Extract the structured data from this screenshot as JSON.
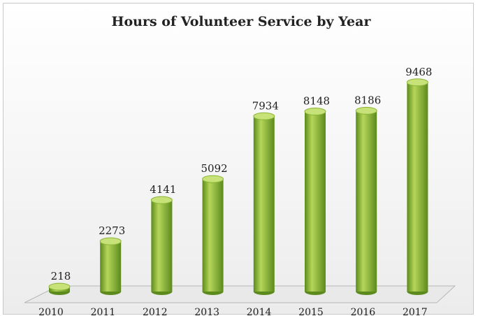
{
  "chart_data": {
    "type": "bar",
    "title": "Hours of Volunteer Service by Year",
    "xlabel": "",
    "ylabel": "",
    "categories": [
      "2010",
      "2011",
      "2012",
      "2013",
      "2014",
      "2015",
      "2016",
      "2017"
    ],
    "values": [
      218,
      2273,
      4141,
      5092,
      7934,
      8148,
      8186,
      9468
    ],
    "data_labels": [
      "218",
      "2273",
      "4141",
      "5092",
      "7934",
      "8148",
      "8186",
      "9468"
    ],
    "ylim": [
      0,
      10000
    ],
    "grid": false,
    "legend": "none",
    "style": "3d-cylinder",
    "colors": {
      "bar_light": "#b5d65a",
      "bar_mid": "#8ab534",
      "bar_dark": "#5c8a1c",
      "bar_top": "#c8e27a",
      "floor": "#e9e9e9",
      "floor_edge": "#b8b8b8"
    }
  }
}
